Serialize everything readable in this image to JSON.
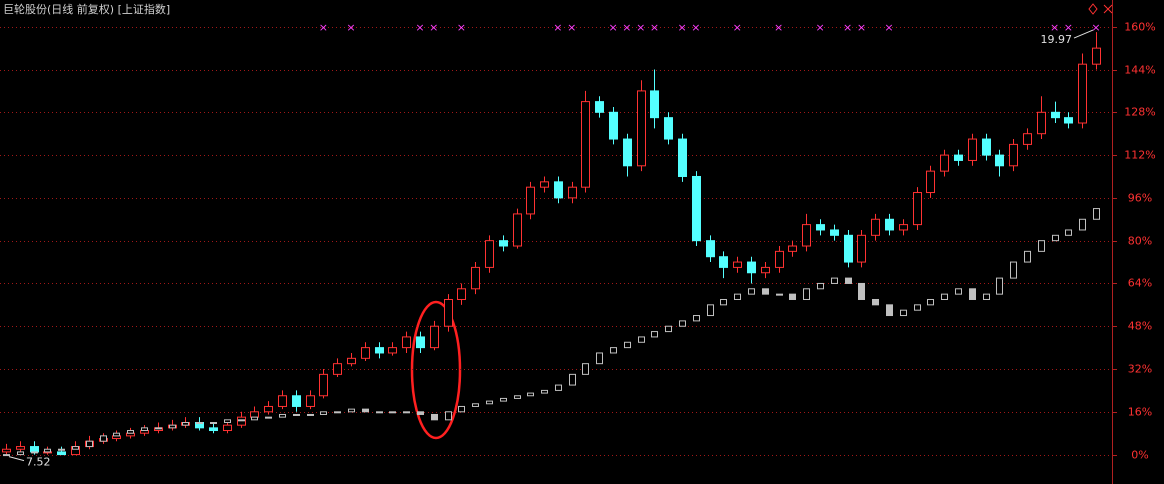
{
  "chart_data": {
    "type": "candlestick",
    "title": "巨轮股份(日线 前复权) [上证指数]",
    "ylim": [
      -11,
      170
    ],
    "yticks": [
      {
        "value": 0,
        "label": "0%"
      },
      {
        "value": 16,
        "label": "16%"
      },
      {
        "value": 32,
        "label": "32%"
      },
      {
        "value": 48,
        "label": "48%"
      },
      {
        "value": 64,
        "label": "64%"
      },
      {
        "value": 80,
        "label": "80%"
      },
      {
        "value": 96,
        "label": "96%"
      },
      {
        "value": 112,
        "label": "112%"
      },
      {
        "value": 128,
        "label": "128%"
      },
      {
        "value": 144,
        "label": "144%"
      },
      {
        "value": 160,
        "label": "160%"
      }
    ],
    "grid": true,
    "low_label": "7.52",
    "high_label": "19.97",
    "signals": [
      null,
      null,
      null,
      null,
      null,
      null,
      null,
      null,
      null,
      null,
      null,
      null,
      null,
      null,
      null,
      null,
      null,
      null,
      null,
      null,
      null,
      null,
      null,
      "×",
      null,
      "×",
      null,
      null,
      null,
      null,
      "×",
      "×",
      null,
      "×",
      null,
      null,
      null,
      null,
      null,
      null,
      "×",
      "×",
      null,
      null,
      "×",
      "×",
      "×",
      "×",
      null,
      "×",
      "×",
      null,
      null,
      "×",
      null,
      null,
      "×",
      null,
      null,
      "×",
      null,
      "×",
      "×",
      null,
      "×",
      null,
      null,
      null,
      null,
      null,
      null,
      null,
      null,
      null,
      null,
      null,
      "×",
      "×",
      null,
      "×"
    ],
    "series": [
      {
        "name": "巨轮股份",
        "up_color": "#ff3232",
        "down_color": "#54ffff",
        "open": [
          1,
          2,
          3,
          1,
          1,
          0,
          3,
          5,
          6,
          7,
          8,
          9,
          10,
          11,
          12,
          10,
          9,
          11,
          14,
          16,
          18,
          22,
          18,
          22,
          30,
          34,
          36,
          40,
          38,
          40,
          44,
          40,
          48,
          58,
          62,
          70,
          80,
          78,
          90,
          100,
          102,
          96,
          100,
          132,
          128,
          118,
          108,
          136,
          126,
          118,
          104,
          80,
          74,
          70,
          72,
          68,
          70,
          76,
          78,
          86,
          84,
          82,
          72,
          82,
          88,
          84,
          86,
          98,
          106,
          112,
          110,
          118,
          112,
          108,
          116,
          120,
          128,
          126,
          124,
          146
        ],
        "high": [
          4,
          5,
          5,
          3,
          3,
          5,
          7,
          8,
          9,
          10,
          11,
          12,
          13,
          14,
          14,
          12,
          13,
          16,
          18,
          20,
          24,
          24,
          24,
          32,
          36,
          38,
          42,
          42,
          42,
          46,
          46,
          50,
          60,
          64,
          72,
          82,
          82,
          92,
          102,
          104,
          104,
          102,
          136,
          134,
          130,
          120,
          140,
          144,
          128,
          120,
          106,
          82,
          76,
          74,
          74,
          72,
          78,
          80,
          90,
          88,
          86,
          84,
          84,
          90,
          90,
          88,
          100,
          108,
          114,
          114,
          120,
          120,
          114,
          118,
          122,
          134,
          132,
          128,
          150,
          158
        ],
        "low": [
          0,
          1,
          0,
          0,
          0,
          0,
          2,
          4,
          5,
          6,
          7,
          8,
          9,
          10,
          9,
          8,
          8,
          10,
          13,
          15,
          17,
          16,
          17,
          21,
          29,
          33,
          35,
          36,
          37,
          38,
          38,
          39,
          46,
          56,
          60,
          68,
          76,
          77,
          88,
          98,
          94,
          94,
          98,
          126,
          116,
          104,
          106,
          122,
          116,
          102,
          78,
          72,
          66,
          68,
          64,
          66,
          68,
          74,
          76,
          82,
          80,
          70,
          70,
          80,
          82,
          82,
          84,
          96,
          104,
          108,
          108,
          110,
          104,
          106,
          114,
          118,
          124,
          122,
          122,
          144
        ],
        "close": [
          2,
          3,
          1,
          1,
          0,
          3,
          5,
          6,
          7,
          8,
          9,
          10,
          11,
          12,
          10,
          9,
          11,
          14,
          16,
          18,
          22,
          18,
          22,
          30,
          34,
          36,
          40,
          38,
          40,
          44,
          40,
          48,
          58,
          62,
          70,
          80,
          78,
          90,
          100,
          102,
          96,
          100,
          132,
          128,
          118,
          108,
          136,
          126,
          118,
          104,
          80,
          74,
          70,
          72,
          68,
          70,
          76,
          78,
          86,
          84,
          82,
          72,
          82,
          88,
          84,
          86,
          98,
          106,
          112,
          110,
          118,
          112,
          108,
          116,
          120,
          128,
          126,
          124,
          146,
          152
        ]
      },
      {
        "name": "上证指数",
        "up_color": "#c0c0c0",
        "down_color": "#c0c0c0",
        "open": [
          0,
          0,
          1,
          1,
          2,
          2,
          3,
          5,
          7,
          8,
          9,
          10,
          10,
          11,
          12,
          12,
          12,
          13,
          13,
          14,
          14,
          15,
          15,
          15,
          16,
          16,
          17,
          16,
          16,
          16,
          16,
          15,
          13,
          16,
          18,
          19,
          20,
          21,
          22,
          23,
          24,
          26,
          30,
          34,
          38,
          40,
          42,
          44,
          46,
          48,
          50,
          52,
          56,
          58,
          60,
          62,
          60,
          60,
          58,
          62,
          64,
          66,
          64,
          58,
          56,
          52,
          54,
          56,
          58,
          60,
          62,
          58,
          60,
          66,
          72,
          76,
          80,
          82,
          84,
          88
        ],
        "close": [
          0,
          1,
          1,
          2,
          2,
          3,
          5,
          7,
          8,
          9,
          10,
          10,
          11,
          12,
          12,
          12,
          13,
          13,
          14,
          14,
          15,
          15,
          15,
          16,
          16,
          17,
          16,
          16,
          16,
          16,
          15,
          13,
          16,
          18,
          19,
          20,
          21,
          22,
          23,
          24,
          26,
          30,
          34,
          38,
          40,
          42,
          44,
          46,
          48,
          50,
          52,
          56,
          58,
          60,
          62,
          60,
          60,
          58,
          62,
          64,
          66,
          64,
          58,
          56,
          52,
          54,
          56,
          58,
          60,
          62,
          58,
          60,
          66,
          72,
          76,
          80,
          82,
          84,
          88,
          92
        ]
      }
    ]
  }
}
